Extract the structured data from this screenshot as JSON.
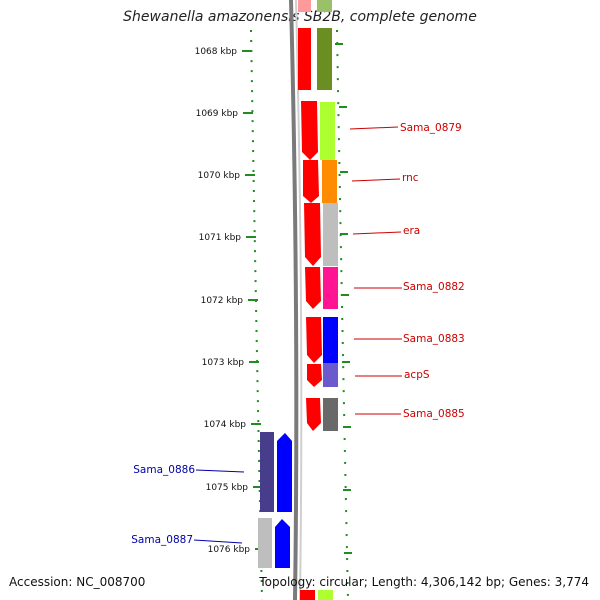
{
  "title": "Shewanella amazonensis SB2B, complete genome",
  "accession": "Accession: NC_008700",
  "summary": "Topology: circular; Length: 4,306,142 bp; Genes: 3,774",
  "ruler": [
    "1068 kbp",
    "1069 kbp",
    "1070 kbp",
    "1071 kbp",
    "1072 kbp",
    "1073 kbp",
    "1074 kbp",
    "1075 kbp",
    "1076 kbp"
  ],
  "genes": [
    {
      "name": "Sama_0879",
      "strand": "reverse",
      "feature_color": "#adff2f",
      "label_color": "#cc0000"
    },
    {
      "name": "rnc",
      "strand": "reverse",
      "feature_color": "#ff8c00",
      "label_color": "#cc0000"
    },
    {
      "name": "era",
      "strand": "reverse",
      "feature_color": "#bebebe",
      "label_color": "#cc0000"
    },
    {
      "name": "Sama_0882",
      "strand": "reverse",
      "feature_color": "#ff1493",
      "label_color": "#cc0000"
    },
    {
      "name": "Sama_0883",
      "strand": "reverse",
      "feature_color": "#0000ff",
      "label_color": "#cc0000"
    },
    {
      "name": "acpS",
      "strand": "reverse",
      "feature_color": "#6a5acd",
      "label_color": "#cc0000"
    },
    {
      "name": "Sama_0885",
      "strand": "reverse",
      "feature_color": "#696969",
      "label_color": "#cc0000"
    },
    {
      "name": "Sama_0886",
      "strand": "forward",
      "feature_color": "#483d8b",
      "label_color": "#0000aa"
    },
    {
      "name": "Sama_0887",
      "strand": "forward",
      "feature_color": "#bebebe",
      "label_color": "#0000aa"
    }
  ],
  "colors": {
    "reverse_strand": "#ff0000",
    "forward_strand": "#0000ff",
    "backbone": "#7a7a7a",
    "ruler": "#228b22"
  }
}
